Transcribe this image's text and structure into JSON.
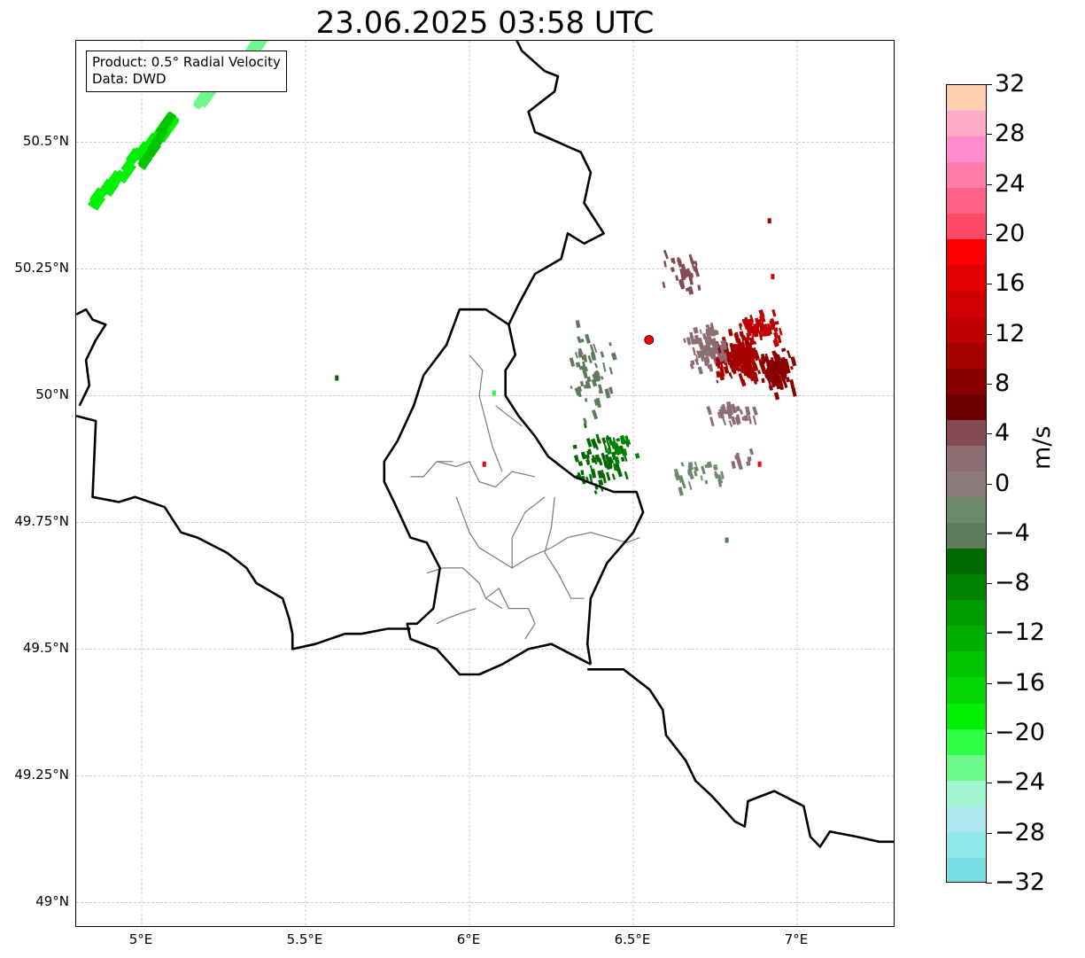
{
  "title": "23.06.2025 03:58 UTC",
  "info_box": {
    "product": "Product: 0.5° Radial Velocity",
    "data": "Data: DWD"
  },
  "map": {
    "extent": {
      "lon_min": 4.8,
      "lon_max": 7.3,
      "lat_min": 48.95,
      "lat_max": 50.7
    },
    "lat_ticks": [
      {
        "value": 50.5,
        "label": "50.5°N"
      },
      {
        "value": 50.25,
        "label": "50.25°N"
      },
      {
        "value": 50.0,
        "label": "50°N"
      },
      {
        "value": 49.75,
        "label": "49.75°N"
      },
      {
        "value": 49.5,
        "label": "49.5°N"
      },
      {
        "value": 49.25,
        "label": "49.25°N"
      },
      {
        "value": 49.0,
        "label": "49°N"
      }
    ],
    "lon_ticks": [
      {
        "value": 5.0,
        "label": "5°E"
      },
      {
        "value": 5.5,
        "label": "5.5°E"
      },
      {
        "value": 6.0,
        "label": "6°E"
      },
      {
        "value": 6.5,
        "label": "6.5°E"
      },
      {
        "value": 7.0,
        "label": "7°E"
      }
    ],
    "grid": true,
    "radar_site": {
      "lon": 6.548,
      "lat": 50.11,
      "color": "#ff0000"
    },
    "borders": {
      "germany_west": [
        [
          6.13,
          50.72
        ],
        [
          6.16,
          50.68
        ],
        [
          6.23,
          50.64
        ],
        [
          6.27,
          50.63
        ],
        [
          6.26,
          50.6
        ],
        [
          6.18,
          50.56
        ],
        [
          6.2,
          50.52
        ],
        [
          6.34,
          50.48
        ],
        [
          6.37,
          50.44
        ],
        [
          6.35,
          50.38
        ],
        [
          6.41,
          50.32
        ],
        [
          6.35,
          50.3
        ],
        [
          6.3,
          50.32
        ],
        [
          6.28,
          50.27
        ],
        [
          6.2,
          50.24
        ],
        [
          6.15,
          50.18
        ],
        [
          6.12,
          50.14
        ],
        [
          6.14,
          50.08
        ],
        [
          6.11,
          50.05
        ],
        [
          6.11,
          50.0
        ],
        [
          6.15,
          49.96
        ],
        [
          6.2,
          49.92
        ],
        [
          6.24,
          49.88
        ],
        [
          6.32,
          49.84
        ],
        [
          6.44,
          49.81
        ],
        [
          6.51,
          49.81
        ],
        [
          6.53,
          49.77
        ],
        [
          6.5,
          49.73
        ],
        [
          6.42,
          49.67
        ],
        [
          6.37,
          49.6
        ],
        [
          6.36,
          49.51
        ],
        [
          6.37,
          49.47
        ]
      ],
      "germany_france": [
        [
          6.36,
          49.46
        ],
        [
          6.47,
          49.46
        ],
        [
          6.55,
          49.42
        ],
        [
          6.59,
          49.38
        ],
        [
          6.6,
          49.33
        ],
        [
          6.66,
          49.28
        ],
        [
          6.69,
          49.24
        ],
        [
          6.74,
          49.21
        ],
        [
          6.81,
          49.16
        ],
        [
          6.84,
          49.15
        ],
        [
          6.85,
          49.2
        ],
        [
          6.93,
          49.22
        ],
        [
          7.02,
          49.19
        ],
        [
          7.04,
          49.13
        ],
        [
          7.07,
          49.11
        ],
        [
          7.1,
          49.14
        ],
        [
          7.18,
          49.13
        ],
        [
          7.25,
          49.12
        ],
        [
          7.3,
          49.12
        ]
      ],
      "luxembourg": [
        [
          6.12,
          50.14
        ],
        [
          6.05,
          50.17
        ],
        [
          6.0,
          50.17
        ],
        [
          5.97,
          50.17
        ],
        [
          5.93,
          50.1
        ],
        [
          5.86,
          50.04
        ],
        [
          5.83,
          49.98
        ],
        [
          5.78,
          49.91
        ],
        [
          5.74,
          49.87
        ],
        [
          5.74,
          49.83
        ],
        [
          5.77,
          49.79
        ],
        [
          5.82,
          49.72
        ],
        [
          5.87,
          49.71
        ],
        [
          5.91,
          49.66
        ],
        [
          5.89,
          49.58
        ],
        [
          5.84,
          49.55
        ],
        [
          5.81,
          49.55
        ],
        [
          5.82,
          49.52
        ],
        [
          5.9,
          49.5
        ],
        [
          5.97,
          49.45
        ],
        [
          6.03,
          49.45
        ],
        [
          6.1,
          49.47
        ],
        [
          6.18,
          49.5
        ],
        [
          6.25,
          49.51
        ],
        [
          6.34,
          49.48
        ],
        [
          6.37,
          49.47
        ]
      ],
      "belgium_france": [
        [
          4.8,
          49.96
        ],
        [
          4.86,
          49.95
        ],
        [
          4.85,
          49.8
        ],
        [
          4.93,
          49.79
        ],
        [
          4.98,
          49.8
        ],
        [
          5.07,
          49.78
        ],
        [
          5.12,
          49.73
        ],
        [
          5.17,
          49.72
        ],
        [
          5.26,
          49.69
        ],
        [
          5.32,
          49.66
        ],
        [
          5.35,
          49.63
        ],
        [
          5.43,
          49.6
        ],
        [
          5.45,
          49.56
        ],
        [
          5.46,
          49.53
        ],
        [
          5.46,
          49.5
        ],
        [
          5.53,
          49.51
        ],
        [
          5.62,
          49.53
        ],
        [
          5.67,
          49.53
        ],
        [
          5.75,
          49.54
        ],
        [
          5.82,
          49.54
        ]
      ],
      "top_left": [
        [
          4.8,
          50.16
        ],
        [
          4.83,
          50.17
        ],
        [
          4.85,
          50.15
        ],
        [
          4.89,
          50.14
        ],
        [
          4.86,
          50.11
        ],
        [
          4.83,
          50.07
        ],
        [
          4.84,
          50.02
        ],
        [
          4.81,
          49.98
        ]
      ]
    },
    "cantons": [
      [
        [
          5.9,
          49.87
        ],
        [
          5.96,
          49.86
        ],
        [
          6.0,
          49.87
        ],
        [
          6.03,
          49.83
        ],
        [
          6.08,
          49.82
        ],
        [
          6.13,
          49.85
        ],
        [
          6.2,
          49.84
        ]
      ],
      [
        [
          6.0,
          50.08
        ],
        [
          6.04,
          50.05
        ],
        [
          6.03,
          50.0
        ],
        [
          6.05,
          49.95
        ],
        [
          6.07,
          49.9
        ],
        [
          6.1,
          49.85
        ]
      ],
      [
        [
          6.08,
          49.98
        ],
        [
          6.12,
          49.96
        ],
        [
          6.16,
          49.94
        ]
      ],
      [
        [
          5.82,
          49.84
        ],
        [
          5.86,
          49.84
        ],
        [
          5.9,
          49.87
        ],
        [
          5.95,
          49.87
        ]
      ],
      [
        [
          5.96,
          49.8
        ],
        [
          6.0,
          49.73
        ],
        [
          6.03,
          49.7
        ],
        [
          6.08,
          49.68
        ],
        [
          6.13,
          49.66
        ],
        [
          6.18,
          49.68
        ],
        [
          6.25,
          49.7
        ],
        [
          6.3,
          49.72
        ],
        [
          6.37,
          49.73
        ],
        [
          6.48,
          49.71
        ],
        [
          6.52,
          49.72
        ]
      ],
      [
        [
          6.26,
          49.8
        ],
        [
          6.25,
          49.74
        ],
        [
          6.23,
          49.69
        ],
        [
          6.27,
          49.65
        ],
        [
          6.31,
          49.6
        ],
        [
          6.35,
          49.6
        ]
      ],
      [
        [
          6.05,
          49.6
        ],
        [
          6.09,
          49.62
        ],
        [
          6.12,
          49.58
        ],
        [
          6.18,
          49.58
        ],
        [
          6.2,
          49.55
        ],
        [
          6.17,
          49.52
        ]
      ],
      [
        [
          5.87,
          49.65
        ],
        [
          5.92,
          49.66
        ],
        [
          5.98,
          49.66
        ],
        [
          6.03,
          49.63
        ],
        [
          6.05,
          49.6
        ],
        [
          6.1,
          49.58
        ]
      ],
      [
        [
          6.02,
          49.58
        ],
        [
          5.97,
          49.57
        ],
        [
          5.93,
          49.56
        ],
        [
          5.9,
          49.55
        ]
      ],
      [
        [
          6.13,
          49.66
        ],
        [
          6.13,
          49.72
        ],
        [
          6.17,
          49.77
        ],
        [
          6.23,
          49.8
        ]
      ]
    ],
    "echo_clusters": [
      {
        "band": "pos_10",
        "center": [
          6.82,
          50.08
        ],
        "spread": [
          0.1,
          0.06
        ],
        "count": 170,
        "seed": 11
      },
      {
        "band": "pos_8",
        "center": [
          6.93,
          50.05
        ],
        "spread": [
          0.07,
          0.05
        ],
        "count": 110,
        "seed": 12
      },
      {
        "band": "pos_12",
        "center": [
          6.88,
          50.14
        ],
        "spread": [
          0.1,
          0.04
        ],
        "count": 60,
        "seed": 13
      },
      {
        "band": "pos_2",
        "center": [
          6.72,
          50.1
        ],
        "spread": [
          0.08,
          0.06
        ],
        "count": 80,
        "seed": 14
      },
      {
        "band": "pos_4",
        "center": [
          6.65,
          50.25
        ],
        "spread": [
          0.07,
          0.05
        ],
        "count": 40,
        "seed": 15
      },
      {
        "band": "pos_2",
        "center": [
          6.8,
          49.97
        ],
        "spread": [
          0.12,
          0.03
        ],
        "count": 30,
        "seed": 16
      },
      {
        "band": "neg_6",
        "center": [
          6.4,
          49.88
        ],
        "spread": [
          0.11,
          0.08
        ],
        "count": 70,
        "seed": 17
      },
      {
        "band": "neg_4",
        "center": [
          6.35,
          50.05
        ],
        "spread": [
          0.1,
          0.12
        ],
        "count": 55,
        "seed": 18
      },
      {
        "band": "neg_2",
        "center": [
          6.7,
          49.85
        ],
        "spread": [
          0.12,
          0.04
        ],
        "count": 30,
        "seed": 19
      },
      {
        "band": "neg_8",
        "center": [
          6.45,
          49.9
        ],
        "spread": [
          0.06,
          0.04
        ],
        "count": 25,
        "seed": 20
      },
      {
        "band": "pos_2",
        "center": [
          6.83,
          49.88
        ],
        "spread": [
          0.04,
          0.02
        ],
        "count": 10,
        "seed": 21
      }
    ],
    "far_echoes": [
      {
        "band": "neg_18",
        "center": [
          4.98,
          50.48
        ],
        "spread": [
          0.12,
          0.05
        ],
        "count": 45,
        "seed": 31
      },
      {
        "band": "neg_22",
        "center": [
          5.28,
          50.66
        ],
        "spread": [
          0.1,
          0.04
        ],
        "count": 28,
        "seed": 32
      },
      {
        "band": "neg_14",
        "center": [
          5.05,
          50.52
        ],
        "spread": [
          0.04,
          0.03
        ],
        "count": 18,
        "seed": 33
      }
    ],
    "echo_dots": [
      {
        "band": "pos_18",
        "lon": 6.04,
        "lat": 49.87
      },
      {
        "band": "neg_20",
        "lon": 6.07,
        "lat": 50.01
      },
      {
        "band": "pos_18",
        "lon": 6.88,
        "lat": 49.87
      },
      {
        "band": "pos_14",
        "lon": 6.92,
        "lat": 50.24
      },
      {
        "band": "pos_10",
        "lon": 6.91,
        "lat": 50.35
      },
      {
        "band": "neg_6",
        "lon": 5.59,
        "lat": 50.04
      },
      {
        "band": "neg_4",
        "lon": 6.78,
        "lat": 49.72
      }
    ]
  },
  "colorbar": {
    "vmin": -32,
    "vmax": 32,
    "unit": "m/s",
    "tick_values": [
      -32,
      -28,
      -24,
      -20,
      -16,
      -12,
      -8,
      -4,
      0,
      4,
      8,
      12,
      16,
      20,
      24,
      28,
      32
    ],
    "tick_labels": [
      "−32",
      "−28",
      "−24",
      "−20",
      "−16",
      "−12",
      "−8",
      "−4",
      "0",
      "4",
      "8",
      "12",
      "16",
      "20",
      "24",
      "28",
      "32"
    ],
    "colors": [
      "#77e0e7",
      "#8fe8ea",
      "#aee8ee",
      "#9ff5cf",
      "#6bf98b",
      "#2dfd44",
      "#02f004",
      "#00d800",
      "#00c400",
      "#00b000",
      "#009c00",
      "#008400",
      "#006a00",
      "#5c7c5c",
      "#6b8a6a",
      "#8a7b7a",
      "#8c6d74",
      "#844b52",
      "#6c0000",
      "#880000",
      "#a50000",
      "#bd0000",
      "#d10000",
      "#e40000",
      "#ff0000",
      "#ff4a66",
      "#ff6289",
      "#ff7ca9",
      "#ff8ccf",
      "#ffa9c8",
      "#ffcdb0"
    ]
  }
}
